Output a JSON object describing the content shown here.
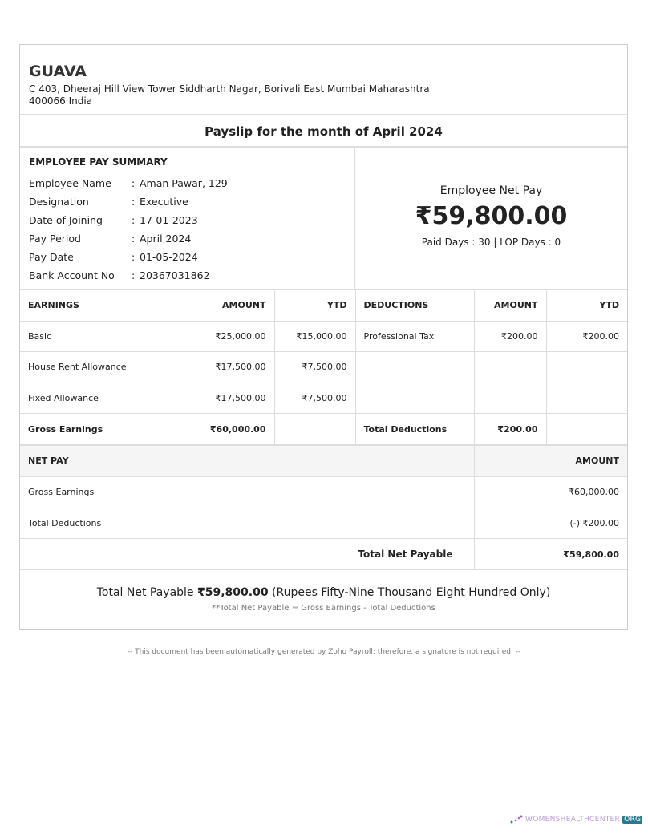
{
  "company": {
    "name": "GUAVA",
    "address_line1": "C 403, Dheeraj Hill View Tower Siddharth Nagar, Borivali East Mumbai Maharashtra",
    "address_line2": "400066 India"
  },
  "title": "Payslip for the month of April 2024",
  "summary": {
    "heading": "EMPLOYEE PAY SUMMARY",
    "fields": [
      {
        "label": "Employee Name",
        "value": "Aman Pawar, 129"
      },
      {
        "label": "Designation",
        "value": "Executive"
      },
      {
        "label": "Date of Joining",
        "value": "17-01-2023"
      },
      {
        "label": "Pay Period",
        "value": "April 2024"
      },
      {
        "label": "Pay Date",
        "value": "01-05-2024"
      },
      {
        "label": "Bank Account No",
        "value": "20367031862"
      }
    ],
    "net_pay_label": "Employee Net Pay",
    "net_pay_value": "₹59,800.00",
    "days": "Paid Days : 30 | LOP Days : 0"
  },
  "table": {
    "headers": [
      "EARNINGS",
      "AMOUNT",
      "YTD",
      "DEDUCTIONS",
      "AMOUNT",
      "YTD"
    ],
    "rows": [
      [
        "Basic",
        "₹25,000.00",
        "₹15,000.00",
        "Professional Tax",
        "₹200.00",
        "₹200.00"
      ],
      [
        "House Rent Allowance",
        "₹17,500.00",
        "₹7,500.00",
        "",
        "",
        ""
      ],
      [
        "Fixed Allowance",
        "₹17,500.00",
        "₹7,500.00",
        "",
        "",
        ""
      ]
    ],
    "totals": [
      "Gross Earnings",
      "₹60,000.00",
      "",
      "Total Deductions",
      "₹200.00",
      ""
    ]
  },
  "net": {
    "header": "NET PAY",
    "amount_header": "AMOUNT",
    "rows": [
      {
        "label": "Gross Earnings",
        "value": "₹60,000.00"
      },
      {
        "label": "Total Deductions",
        "value": "(-) ₹200.00"
      }
    ],
    "total_label": "Total Net Payable",
    "total_value": "₹59,800.00"
  },
  "footer": {
    "prefix": "Total Net Payable",
    "amount": "₹59,800.00",
    "words": "(Rupees Fifty-Nine Thousand Eight Hundred Only)",
    "note": "**Total Net Payable = Gross Earnings - Total Deductions"
  },
  "generated_note": "-- This document has been automatically generated by Zoho Payroll; therefore, a signature is not required. --",
  "watermark": {
    "text": "WOMENSHEALTHCENTER",
    "suffix": "ORG"
  }
}
